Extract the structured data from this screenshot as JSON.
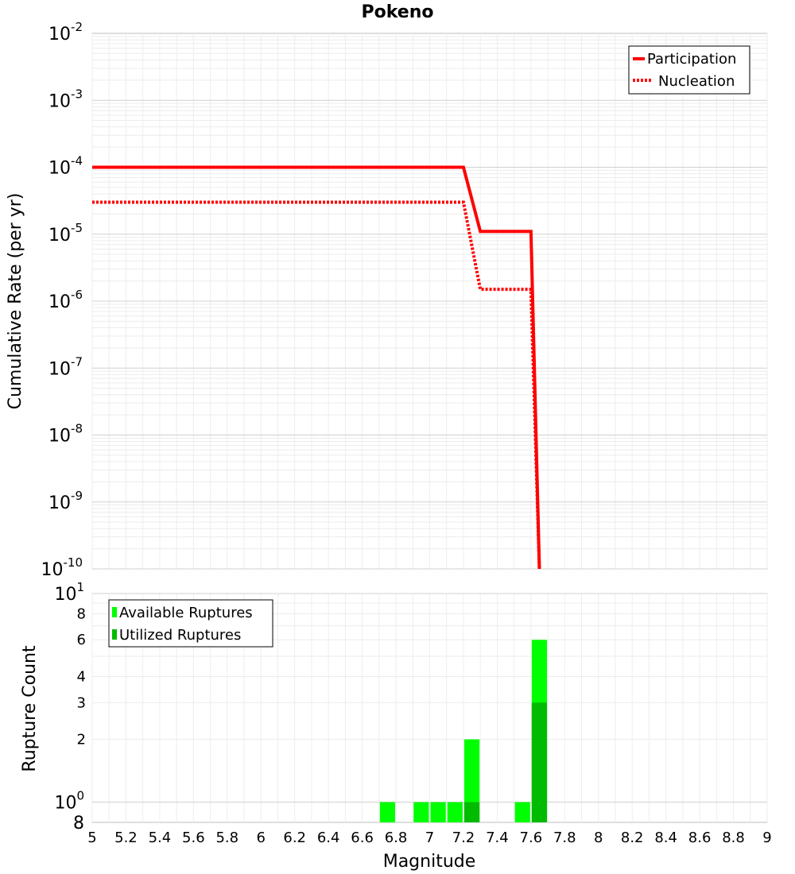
{
  "chart_data": [
    {
      "type": "line",
      "title": "Pokeno",
      "xlabel": "",
      "ylabel": "Cumulative Rate (per yr)",
      "xlim": [
        5,
        9
      ],
      "ylim": [
        1e-10,
        0.01
      ],
      "yscale": "log",
      "grid": true,
      "legend_position": "top-right",
      "y_tick_labels": [
        {
          "value": 0.01,
          "base": "10",
          "exp": "-2"
        },
        {
          "value": 0.001,
          "base": "10",
          "exp": "-3"
        },
        {
          "value": 0.0001,
          "base": "10",
          "exp": "-4"
        },
        {
          "value": 1e-05,
          "base": "10",
          "exp": "-5"
        },
        {
          "value": 1e-06,
          "base": "10",
          "exp": "-6"
        },
        {
          "value": 1e-07,
          "base": "10",
          "exp": "-7"
        },
        {
          "value": 1e-08,
          "base": "10",
          "exp": "-8"
        },
        {
          "value": 1e-09,
          "base": "10",
          "exp": "-9"
        },
        {
          "value": 1e-10,
          "base": "10",
          "exp": "-10"
        }
      ],
      "series": [
        {
          "name": "Participation",
          "color": "#ff0000",
          "style": "solid",
          "x": [
            5.0,
            7.2,
            7.3,
            7.6,
            7.65
          ],
          "y": [
            0.0001,
            0.0001,
            1.1e-05,
            1.1e-05,
            1e-10
          ]
        },
        {
          "name": "Nucleation",
          "color": "#ff0000",
          "style": "dotted",
          "x": [
            5.0,
            7.2,
            7.3,
            7.6,
            7.65
          ],
          "y": [
            3e-05,
            3e-05,
            1.5e-06,
            1.5e-06,
            1e-10
          ]
        }
      ]
    },
    {
      "type": "bar",
      "title": "",
      "xlabel": "Magnitude",
      "ylabel": "Rupture Count",
      "xlim": [
        5,
        9
      ],
      "ylim": [
        0.8,
        10
      ],
      "yscale": "log",
      "grid": true,
      "legend_position": "top-left",
      "bin_width": 0.1,
      "x_ticks": [
        "5",
        "5.2",
        "5.4",
        "5.6",
        "5.8",
        "6",
        "6.2",
        "6.4",
        "6.6",
        "6.8",
        "7",
        "7.2",
        "7.4",
        "7.6",
        "7.8",
        "8",
        "8.2",
        "8.4",
        "8.6",
        "8.8",
        "9"
      ],
      "y_tick_labels": [
        {
          "value": 10,
          "base": "10",
          "exp": "1",
          "major": true
        },
        {
          "value": 8,
          "base": "8",
          "exp": "",
          "major": false
        },
        {
          "value": 6,
          "base": "6",
          "exp": "",
          "major": false
        },
        {
          "value": 4,
          "base": "4",
          "exp": "",
          "major": false
        },
        {
          "value": 3,
          "base": "3",
          "exp": "",
          "major": false
        },
        {
          "value": 2,
          "base": "2",
          "exp": "",
          "major": false
        },
        {
          "value": 1,
          "base": "10",
          "exp": "0",
          "major": true
        },
        {
          "value": 0.8,
          "base": "8",
          "exp": "",
          "major": true
        }
      ],
      "series": [
        {
          "name": "Available Ruptures",
          "color": "#00ff00",
          "x": [
            6.75,
            6.95,
            7.05,
            7.15,
            7.25,
            7.55,
            7.65
          ],
          "values": [
            1,
            1,
            1,
            1,
            2,
            1,
            6
          ]
        },
        {
          "name": "Utilized Ruptures",
          "color": "#00bb00",
          "x": [
            7.25,
            7.65
          ],
          "values": [
            1,
            3
          ]
        }
      ]
    }
  ]
}
